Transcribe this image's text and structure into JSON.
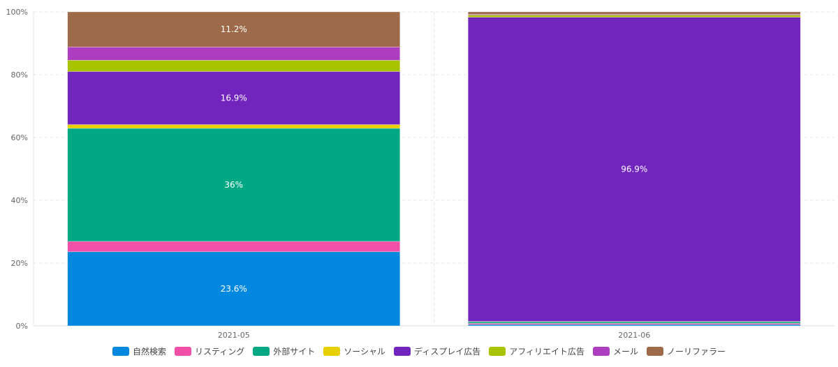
{
  "chart_data": {
    "type": "bar",
    "stacked": "percent",
    "categories": [
      "2021-05",
      "2021-06"
    ],
    "ylim": [
      0,
      100
    ],
    "yticks": [
      "0%",
      "20%",
      "40%",
      "60%",
      "80%",
      "100%"
    ],
    "grid": true,
    "legend_position": "bottom",
    "series": [
      {
        "name": "自然検索",
        "color": "#0288de",
        "values": [
          23.6,
          0.4
        ],
        "labels": [
          "23.6%",
          ""
        ]
      },
      {
        "name": "リスティング",
        "color": "#ef4fa6",
        "values": [
          3.3,
          0.4
        ],
        "labels": [
          "",
          ""
        ]
      },
      {
        "name": "外部サイト",
        "color": "#00a984",
        "values": [
          36,
          0.5
        ],
        "labels": [
          "36%",
          ""
        ]
      },
      {
        "name": "ソーシャル",
        "color": "#e8d000",
        "values": [
          1.2,
          0.1
        ],
        "labels": [
          "",
          ""
        ]
      },
      {
        "name": "ディスプレイ広告",
        "color": "#7125bd",
        "values": [
          16.9,
          96.9
        ],
        "labels": [
          "16.9%",
          "96.9%"
        ]
      },
      {
        "name": "アフィリエイト広告",
        "color": "#a8c400",
        "values": [
          3.6,
          0.7
        ],
        "labels": [
          "",
          ""
        ]
      },
      {
        "name": "メール",
        "color": "#ae3ec0",
        "values": [
          4.2,
          0.2
        ],
        "labels": [
          "",
          ""
        ]
      },
      {
        "name": "ノーリファラー",
        "color": "#9e6b4a",
        "values": [
          11.2,
          0.8
        ],
        "labels": [
          "11.2%",
          ""
        ]
      }
    ]
  }
}
